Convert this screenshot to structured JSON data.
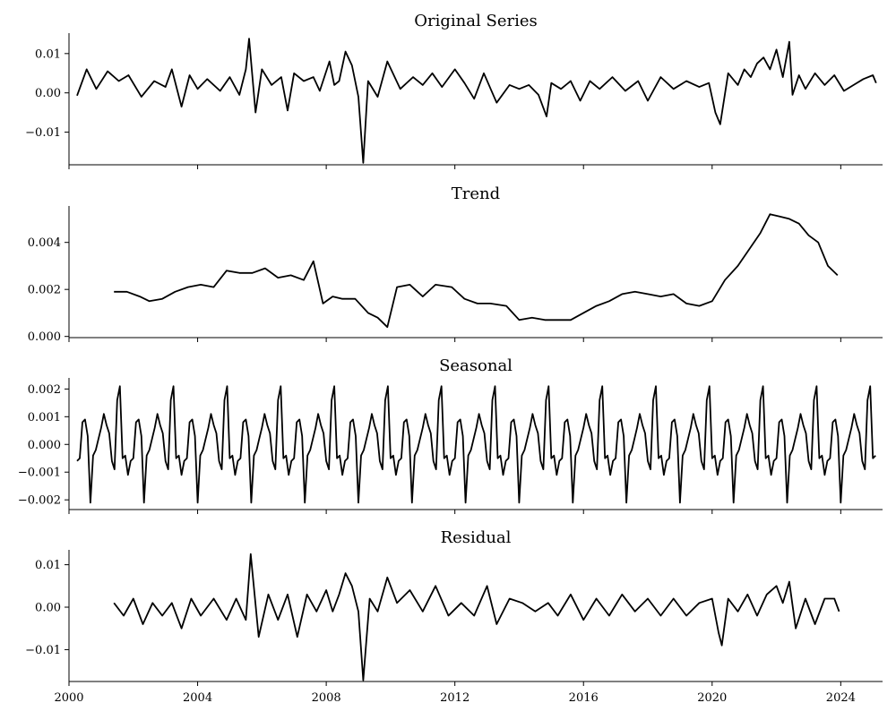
{
  "chart_data": [
    {
      "type": "line",
      "title": "Original Series",
      "xlabel": "",
      "ylabel": "",
      "xlim": [
        2000.0,
        2025.3
      ],
      "ylim": [
        -0.0183,
        0.0152
      ],
      "yticks": [
        -0.01,
        0.0,
        0.01
      ],
      "ytick_labels": [
        "−0.01",
        "0.00",
        "0.01"
      ],
      "xticks": [
        2000,
        2004,
        2008,
        2012,
        2016,
        2020,
        2024
      ],
      "xtick_labels": [],
      "series": [
        {
          "x": [
            2000.25,
            2000.55,
            2000.85,
            2001.2,
            2001.55,
            2001.85,
            2002.25,
            2002.65,
            2003.0,
            2003.2,
            2003.5,
            2003.75,
            2004.0,
            2004.3,
            2004.7,
            2005.0,
            2005.3,
            2005.5,
            2005.6,
            2005.8,
            2006.0,
            2006.3,
            2006.6,
            2006.8,
            2007.0,
            2007.3,
            2007.6,
            2007.8,
            2008.1,
            2008.25,
            2008.4,
            2008.6,
            2008.8,
            2009.0,
            2009.15,
            2009.3,
            2009.6,
            2009.9,
            2010.3,
            2010.7,
            2011.0,
            2011.3,
            2011.6,
            2012.0,
            2012.3,
            2012.6,
            2012.9,
            2013.3,
            2013.7,
            2014.0,
            2014.3,
            2014.6,
            2014.85,
            2015.0,
            2015.3,
            2015.6,
            2015.9,
            2016.2,
            2016.5,
            2016.9,
            2017.3,
            2017.7,
            2018.0,
            2018.4,
            2018.8,
            2019.2,
            2019.6,
            2019.9,
            2020.1,
            2020.25,
            2020.5,
            2020.8,
            2021.0,
            2021.2,
            2021.4,
            2021.6,
            2021.8,
            2022.0,
            2022.2,
            2022.4,
            2022.5,
            2022.7,
            2022.9,
            2023.2,
            2023.5,
            2023.8,
            2024.1,
            2024.4,
            2024.7,
            2025.0,
            2025.1
          ],
          "y": [
            -0.0007,
            0.006,
            0.001,
            0.0055,
            0.003,
            0.0045,
            -0.001,
            0.003,
            0.0015,
            0.006,
            -0.0035,
            0.0045,
            0.001,
            0.0035,
            0.0005,
            0.004,
            -0.0005,
            0.006,
            0.0138,
            -0.005,
            0.006,
            0.002,
            0.004,
            -0.0045,
            0.005,
            0.003,
            0.004,
            0.0005,
            0.008,
            0.002,
            0.003,
            0.0105,
            0.007,
            -0.001,
            -0.0178,
            0.003,
            -0.001,
            0.008,
            0.001,
            0.004,
            0.002,
            0.005,
            0.0015,
            0.006,
            0.0025,
            -0.0015,
            0.005,
            -0.0025,
            0.002,
            0.001,
            0.002,
            -0.0005,
            -0.006,
            0.0025,
            0.001,
            0.003,
            -0.002,
            0.003,
            0.001,
            0.004,
            0.0005,
            0.003,
            -0.002,
            0.004,
            0.001,
            0.003,
            0.0015,
            0.0025,
            -0.005,
            -0.008,
            0.005,
            0.002,
            0.006,
            0.004,
            0.0075,
            0.009,
            0.006,
            0.011,
            0.004,
            0.013,
            -0.0005,
            0.0045,
            0.001,
            0.005,
            0.002,
            0.0045,
            0.0005,
            0.002,
            0.0035,
            0.0045,
            0.0025
          ]
        }
      ]
    },
    {
      "type": "line",
      "title": "Trend",
      "xlabel": "",
      "ylabel": "",
      "xlim": [
        2000.0,
        2025.3
      ],
      "ylim": [
        -5e-05,
        0.00555
      ],
      "yticks": [
        0.0,
        0.002,
        0.004
      ],
      "ytick_labels": [
        "0.000",
        "0.002",
        "0.004"
      ],
      "xticks": [
        2000,
        2004,
        2008,
        2012,
        2016,
        2020,
        2024
      ],
      "xtick_labels": [],
      "series": [
        {
          "x": [
            2001.4,
            2001.8,
            2002.2,
            2002.5,
            2002.9,
            2003.3,
            2003.7,
            2004.1,
            2004.5,
            2004.9,
            2005.3,
            2005.7,
            2006.1,
            2006.5,
            2006.9,
            2007.3,
            2007.6,
            2007.9,
            2008.2,
            2008.5,
            2008.9,
            2009.3,
            2009.6,
            2009.9,
            2010.2,
            2010.6,
            2011.0,
            2011.4,
            2011.9,
            2012.3,
            2012.7,
            2013.1,
            2013.6,
            2014.0,
            2014.4,
            2014.8,
            2015.2,
            2015.6,
            2016.0,
            2016.4,
            2016.8,
            2017.2,
            2017.6,
            2018.0,
            2018.4,
            2018.8,
            2019.2,
            2019.6,
            2020.0,
            2020.4,
            2020.8,
            2021.2,
            2021.5,
            2021.8,
            2022.1,
            2022.4,
            2022.7,
            2023.0,
            2023.3,
            2023.6,
            2023.9
          ],
          "y": [
            0.0019,
            0.0019,
            0.0017,
            0.0015,
            0.0016,
            0.0019,
            0.0021,
            0.0022,
            0.0021,
            0.0028,
            0.0027,
            0.0027,
            0.0029,
            0.0025,
            0.0026,
            0.0024,
            0.0032,
            0.0014,
            0.0017,
            0.0016,
            0.0016,
            0.001,
            0.0008,
            0.0004,
            0.0021,
            0.0022,
            0.0017,
            0.0022,
            0.0021,
            0.0016,
            0.0014,
            0.0014,
            0.0013,
            0.0007,
            0.0008,
            0.0007,
            0.0007,
            0.0007,
            0.001,
            0.0013,
            0.0015,
            0.0018,
            0.0019,
            0.0018,
            0.0017,
            0.0018,
            0.0014,
            0.0013,
            0.0015,
            0.0024,
            0.003,
            0.0038,
            0.0044,
            0.0052,
            0.0051,
            0.005,
            0.0048,
            0.0043,
            0.004,
            0.003,
            0.0026
          ]
        }
      ]
    },
    {
      "type": "line",
      "title": "Seasonal",
      "xlabel": "",
      "ylabel": "",
      "xlim": [
        2000.0,
        2025.3
      ],
      "ylim": [
        -0.00235,
        0.0024
      ],
      "yticks": [
        -0.002,
        -0.001,
        0.0,
        0.001,
        0.002
      ],
      "ytick_labels": [
        "−0.002",
        "−0.001",
        "0.000",
        "0.001",
        "0.002"
      ],
      "xticks": [
        2000,
        2004,
        2008,
        2012,
        2016,
        2020,
        2024
      ],
      "xtick_labels": [],
      "pattern": [
        -0.0006,
        -0.0005,
        0.0008,
        0.0009,
        0.0003,
        -0.0021,
        -0.0004,
        -0.0002,
        0.0002,
        0.0006,
        0.0011,
        0.0007,
        0.0004,
        -0.0006,
        -0.0009,
        0.0016,
        0.0021,
        -0.0005,
        -0.0004,
        -0.0011
      ],
      "series": [
        {
          "x_start": 2000.25,
          "x_step": 0.083333,
          "count": 299
        }
      ]
    },
    {
      "type": "line",
      "title": "Residual",
      "xlabel": "",
      "ylabel": "",
      "xlim": [
        2000.0,
        2025.3
      ],
      "ylim": [
        -0.0175,
        0.0135
      ],
      "yticks": [
        -0.01,
        0.0,
        0.01
      ],
      "ytick_labels": [
        "−0.01",
        "0.00",
        "0.01"
      ],
      "xticks": [
        2000,
        2004,
        2008,
        2012,
        2016,
        2020,
        2024
      ],
      "xtick_labels": [
        "2000",
        "2004",
        "2008",
        "2012",
        "2016",
        "2020",
        "2024"
      ],
      "series": [
        {
          "x": [
            2001.4,
            2001.7,
            2002.0,
            2002.3,
            2002.6,
            2002.9,
            2003.2,
            2003.5,
            2003.8,
            2004.1,
            2004.5,
            2004.9,
            2005.2,
            2005.5,
            2005.65,
            2005.9,
            2006.2,
            2006.5,
            2006.8,
            2007.1,
            2007.4,
            2007.7,
            2008.0,
            2008.2,
            2008.4,
            2008.6,
            2008.8,
            2009.0,
            2009.15,
            2009.35,
            2009.6,
            2009.9,
            2010.2,
            2010.6,
            2011.0,
            2011.4,
            2011.8,
            2012.2,
            2012.6,
            2013.0,
            2013.3,
            2013.7,
            2014.1,
            2014.5,
            2014.9,
            2015.2,
            2015.6,
            2016.0,
            2016.4,
            2016.8,
            2017.2,
            2017.6,
            2018.0,
            2018.4,
            2018.8,
            2019.2,
            2019.6,
            2020.0,
            2020.2,
            2020.3,
            2020.5,
            2020.8,
            2021.1,
            2021.4,
            2021.7,
            2022.0,
            2022.2,
            2022.4,
            2022.6,
            2022.9,
            2023.2,
            2023.5,
            2023.8,
            2023.95
          ],
          "y": [
            0.001,
            -0.002,
            0.002,
            -0.004,
            0.001,
            -0.002,
            0.001,
            -0.005,
            0.002,
            -0.002,
            0.002,
            -0.003,
            0.002,
            -0.003,
            0.0125,
            -0.007,
            0.003,
            -0.003,
            0.003,
            -0.007,
            0.003,
            -0.001,
            0.004,
            -0.001,
            0.003,
            0.008,
            0.005,
            -0.001,
            -0.0172,
            0.002,
            -0.001,
            0.007,
            0.001,
            0.004,
            -0.001,
            0.005,
            -0.002,
            0.001,
            -0.002,
            0.005,
            -0.004,
            0.002,
            0.001,
            -0.001,
            0.001,
            -0.002,
            0.003,
            -0.003,
            0.002,
            -0.002,
            0.003,
            -0.001,
            0.002,
            -0.002,
            0.002,
            -0.002,
            0.001,
            0.002,
            -0.006,
            -0.009,
            0.002,
            -0.001,
            0.003,
            -0.002,
            0.003,
            0.005,
            0.001,
            0.006,
            -0.005,
            0.002,
            -0.004,
            0.002,
            0.002,
            -0.001
          ]
        }
      ]
    }
  ]
}
